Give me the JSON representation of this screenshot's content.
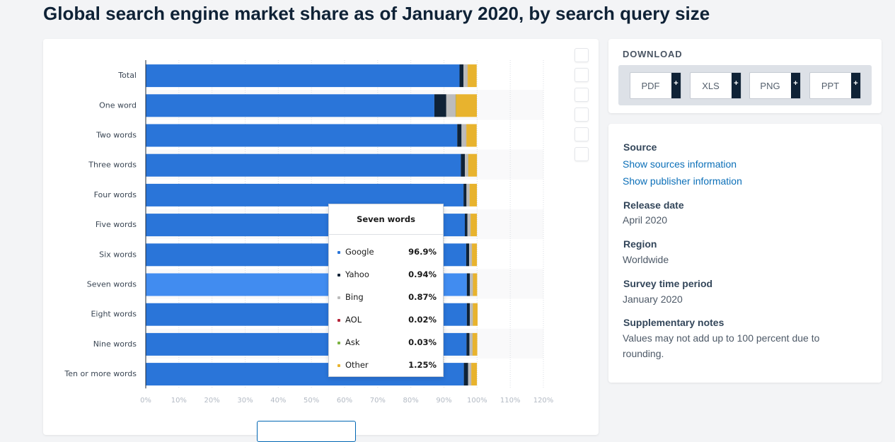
{
  "page": {
    "title": "Global search engine market share as of January 2020, by search query size"
  },
  "chart_data": {
    "type": "bar",
    "orientation": "horizontal",
    "stacked": true,
    "categories": [
      "Total",
      "One word",
      "Two words",
      "Three words",
      "Four words",
      "Five words",
      "Six words",
      "Seven words",
      "Eight words",
      "Nine words",
      "Ten or more words"
    ],
    "series": [
      {
        "name": "Google",
        "color": "#2a75d9",
        "values": [
          94.7,
          87.1,
          94.0,
          95.1,
          95.9,
          96.3,
          96.7,
          96.9,
          96.9,
          96.8,
          96.0
        ]
      },
      {
        "name": "Yahoo",
        "color": "#0f2236",
        "values": [
          1.2,
          3.6,
          1.3,
          1.2,
          0.9,
          0.8,
          0.9,
          0.94,
          0.9,
          0.9,
          1.3
        ]
      },
      {
        "name": "Bing",
        "color": "#bcbcbc",
        "values": [
          1.2,
          2.8,
          1.4,
          1.0,
          0.9,
          0.9,
          0.8,
          0.87,
          0.9,
          0.9,
          0.9
        ]
      },
      {
        "name": "AOL",
        "color": "#b6253a",
        "values": [
          0.03,
          0.05,
          0.03,
          0.02,
          0.02,
          0.02,
          0.02,
          0.02,
          0.02,
          0.02,
          0.02
        ]
      },
      {
        "name": "Ask",
        "color": "#7cb342",
        "values": [
          0.05,
          0.08,
          0.05,
          0.04,
          0.03,
          0.03,
          0.03,
          0.03,
          0.03,
          0.03,
          0.03
        ]
      },
      {
        "name": "Other",
        "color": "#e8b32e",
        "values": [
          2.7,
          6.3,
          3.1,
          2.6,
          2.2,
          1.9,
          1.5,
          1.25,
          1.4,
          1.4,
          1.7
        ]
      }
    ],
    "xlim": [
      0,
      120
    ],
    "x_ticks": [
      "0%",
      "10%",
      "20%",
      "30%",
      "40%",
      "50%",
      "60%",
      "70%",
      "80%",
      "90%",
      "100%",
      "110%",
      "120%"
    ],
    "highlighted_category": "Seven words",
    "highlight_color": "#418cf0",
    "grid": "vertical-dotted"
  },
  "tooltip": {
    "title": "Seven words",
    "rows": [
      {
        "name": "Google",
        "value": "96.9%",
        "color": "#2a75d9"
      },
      {
        "name": "Yahoo",
        "value": "0.94%",
        "color": "#0f2236"
      },
      {
        "name": "Bing",
        "value": "0.87%",
        "color": "#bcbcbc"
      },
      {
        "name": "AOL",
        "value": "0.02%",
        "color": "#b6253a"
      },
      {
        "name": "Ask",
        "value": "0.03%",
        "color": "#7cb342"
      },
      {
        "name": "Other",
        "value": "1.25%",
        "color": "#e8b32e"
      }
    ]
  },
  "download": {
    "title": "DOWNLOAD",
    "buttons": [
      {
        "label": "PDF",
        "plus": "+"
      },
      {
        "label": "XLS",
        "plus": "+"
      },
      {
        "label": "PNG",
        "plus": "+"
      },
      {
        "label": "PPT",
        "plus": "+"
      }
    ]
  },
  "info": {
    "source_label": "Source",
    "show_sources": "Show sources information",
    "show_publisher": "Show publisher information",
    "release_label": "Release date",
    "release_value": "April 2020",
    "region_label": "Region",
    "region_value": "Worldwide",
    "survey_label": "Survey time period",
    "survey_value": "January 2020",
    "notes_label": "Supplementary notes",
    "notes_value": "Values may not add up to 100 percent due to rounding."
  }
}
